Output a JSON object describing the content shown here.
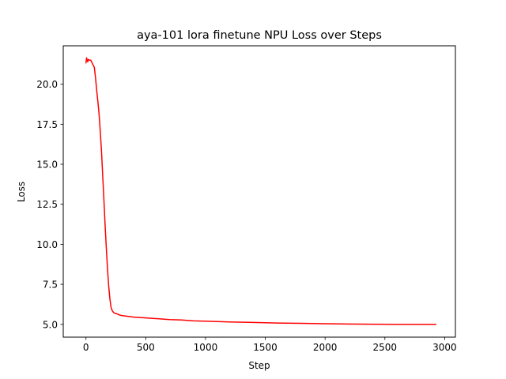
{
  "chart_data": {
    "type": "line",
    "title": "aya-101 lora finetune NPU Loss over Steps",
    "xlabel": "Step",
    "ylabel": "Loss",
    "xlim": [
      -190,
      3090
    ],
    "ylim": [
      4.2,
      22.4
    ],
    "xticks": [
      0,
      500,
      1000,
      1500,
      2000,
      2500,
      3000
    ],
    "xtick_labels": [
      "0",
      "500",
      "1000",
      "1500",
      "2000",
      "2500",
      "3000"
    ],
    "yticks": [
      5.0,
      7.5,
      10.0,
      12.5,
      15.0,
      17.5,
      20.0
    ],
    "ytick_labels": [
      "5.0",
      "7.5",
      "10.0",
      "12.5",
      "15.0",
      "17.5",
      "20.0"
    ],
    "grid": false,
    "series": [
      {
        "color": "#ff0000",
        "x": [
          0,
          5,
          10,
          15,
          20,
          30,
          40,
          50,
          60,
          70,
          80,
          90,
          100,
          110,
          120,
          130,
          140,
          150,
          160,
          170,
          180,
          190,
          200,
          210,
          220,
          230,
          240,
          250,
          260,
          270,
          280,
          300,
          350,
          400,
          500,
          600,
          700,
          800,
          900,
          1000,
          1200,
          1400,
          1600,
          1800,
          2000,
          2200,
          2400,
          2600,
          2800,
          2930
        ],
        "y": [
          21.3,
          21.65,
          21.5,
          21.4,
          21.55,
          21.5,
          21.5,
          21.35,
          21.2,
          21.05,
          20.4,
          19.6,
          18.9,
          18.1,
          17.0,
          15.8,
          14.3,
          12.8,
          11.2,
          9.8,
          8.5,
          7.4,
          6.6,
          6.05,
          5.85,
          5.75,
          5.7,
          5.68,
          5.65,
          5.62,
          5.58,
          5.55,
          5.5,
          5.45,
          5.4,
          5.35,
          5.3,
          5.27,
          5.22,
          5.2,
          5.15,
          5.12,
          5.08,
          5.06,
          5.04,
          5.02,
          5.01,
          5.0,
          5.0,
          5.0
        ]
      }
    ]
  }
}
